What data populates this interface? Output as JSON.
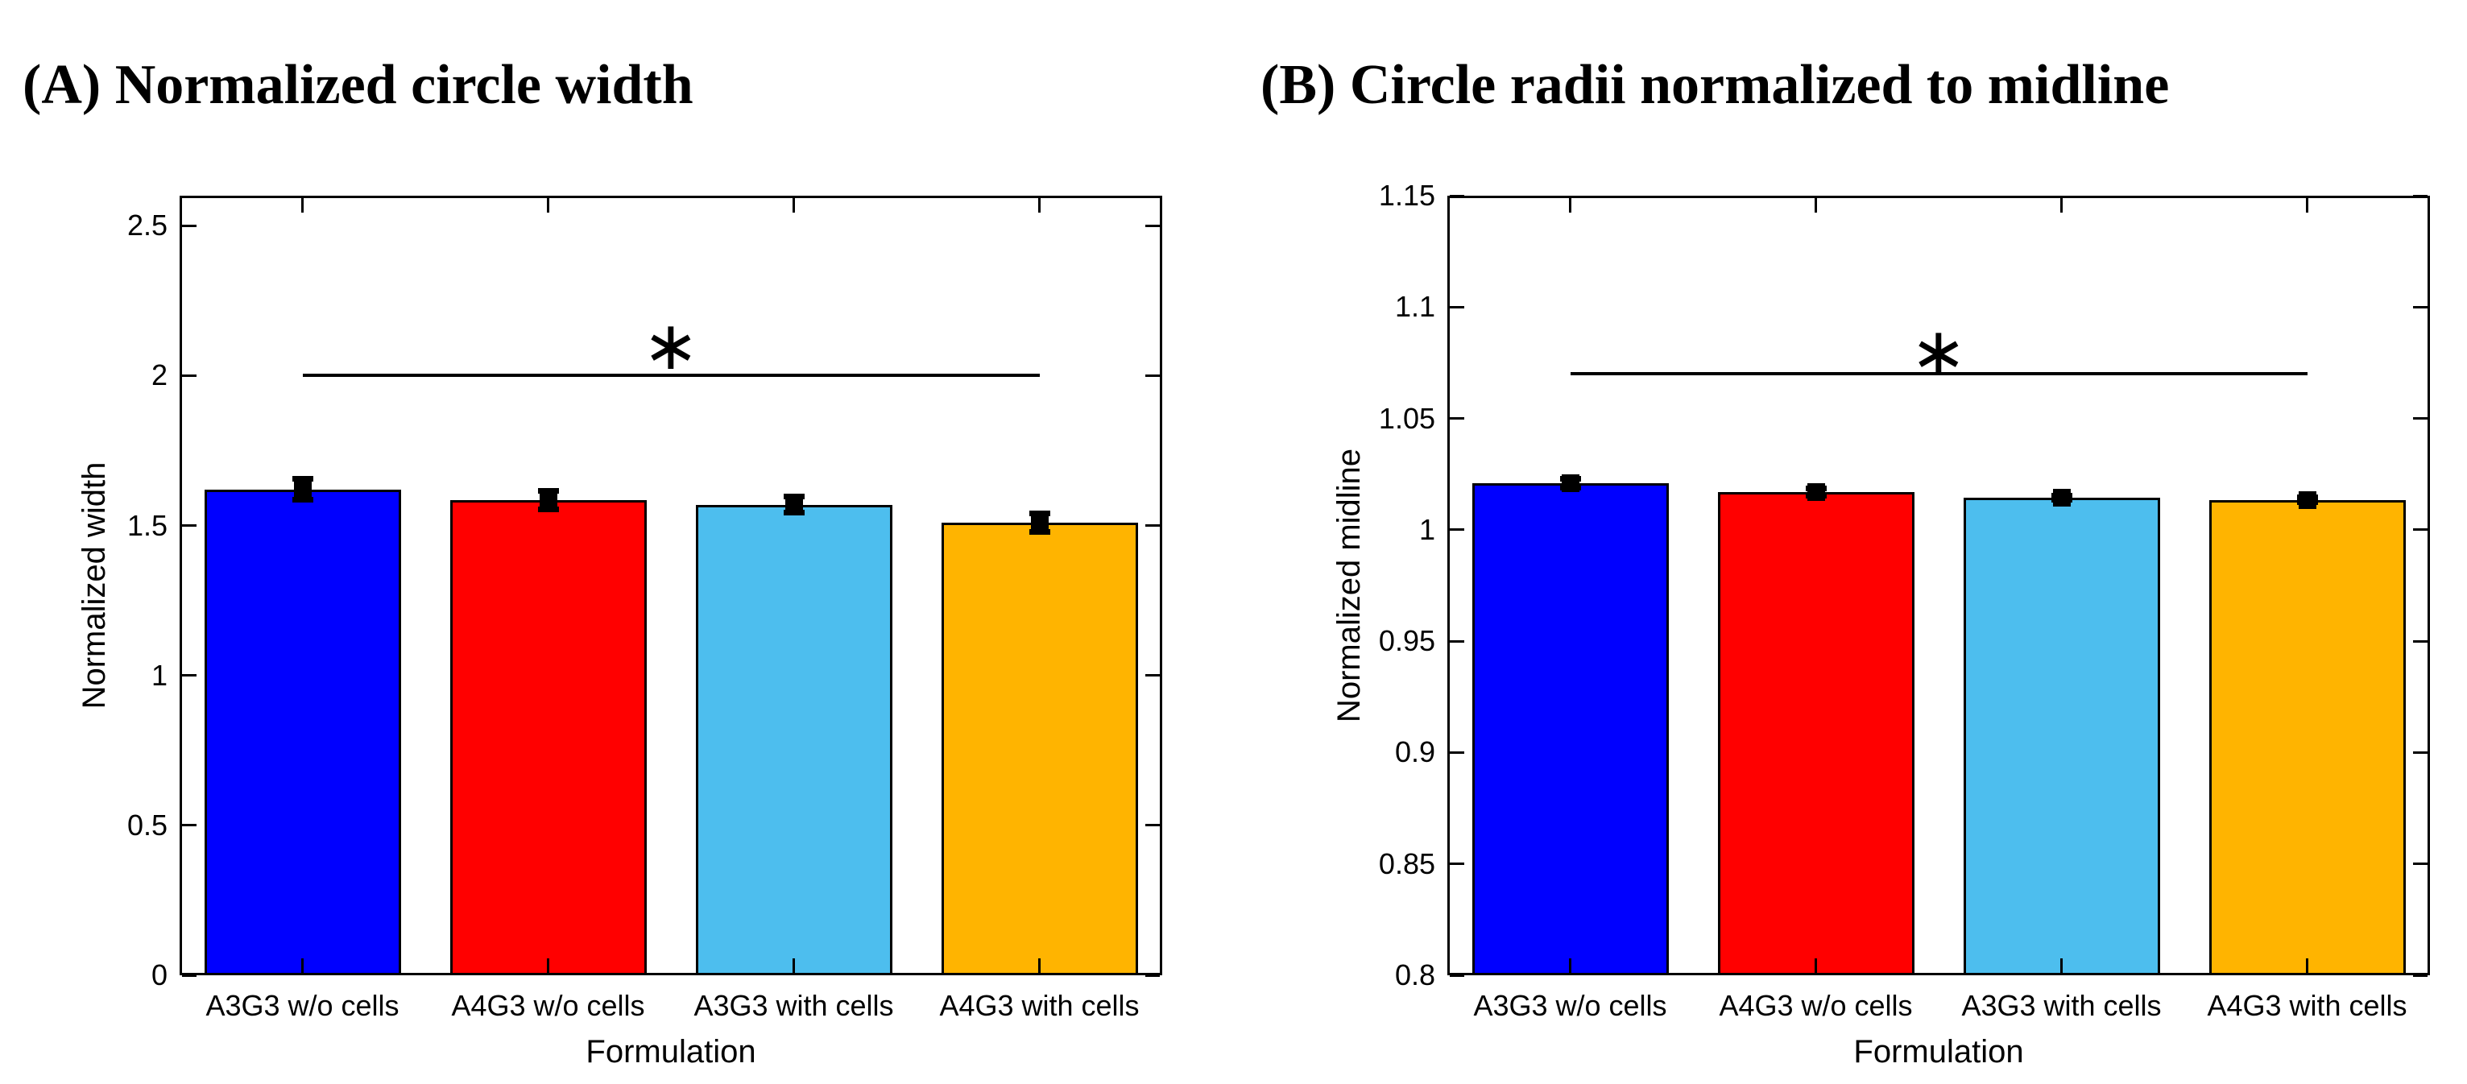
{
  "figure": {
    "background": "#ffffff"
  },
  "colors": {
    "axis": "#000000",
    "text": "#000000",
    "bar_edge": "#000000",
    "error_bar": "#000000",
    "significance": "#000000"
  },
  "chart_data": [
    {
      "type": "bar",
      "label_open": "(",
      "label": "A",
      "label_close": ")",
      "title": "Normalized circle width",
      "xlabel": "Formulation",
      "ylabel": "Normalized width",
      "categories": [
        "A3G3 w/o cells",
        "A4G3 w/o cells",
        "A3G3 with cells",
        "A4G3 with cells"
      ],
      "values": [
        1.62,
        1.585,
        1.57,
        1.51
      ],
      "errors": [
        0.035,
        0.03,
        0.028,
        0.03
      ],
      "bar_colors": [
        "#0000ff",
        "#ff0000",
        "#4dbeee",
        "#ffb400"
      ],
      "ylim": [
        0,
        2.6
      ],
      "yticks": [
        0,
        0.5,
        1,
        1.5,
        2,
        2.5
      ],
      "ytick_labels": [
        "0",
        "0.5",
        "1",
        "1.5",
        "2",
        "2.5"
      ],
      "grid": false,
      "legend": null,
      "significance": {
        "line_y": 2.0,
        "from_category": 0,
        "to_category": 3,
        "marker": "∗",
        "marker_y": 2.1
      }
    },
    {
      "type": "bar",
      "label_open": "(",
      "label": "B",
      "label_close": ")",
      "title": "Circle radii normalized to midline",
      "xlabel": "Formulation",
      "ylabel": "Normalized midline",
      "categories": [
        "A3G3 w/o cells",
        "A4G3 w/o cells",
        "A3G3 with cells",
        "A4G3 with cells"
      ],
      "values": [
        1.021,
        1.017,
        1.0145,
        1.0135
      ],
      "errors": [
        0.002,
        0.0015,
        0.001,
        0.001
      ],
      "bar_colors": [
        "#0000ff",
        "#ff0000",
        "#4dbeee",
        "#ffb400"
      ],
      "ylim": [
        0.8,
        1.15
      ],
      "yticks": [
        0.8,
        0.85,
        0.9,
        0.95,
        1,
        1.05,
        1.1,
        1.15
      ],
      "ytick_labels": [
        "0.8",
        "0.85",
        "0.9",
        "0.95",
        "1",
        "1.05",
        "1.1",
        "1.15"
      ],
      "grid": false,
      "legend": null,
      "significance": {
        "line_y": 1.07,
        "from_category": 0,
        "to_category": 3,
        "marker": "∗",
        "marker_y": 1.08
      }
    }
  ]
}
